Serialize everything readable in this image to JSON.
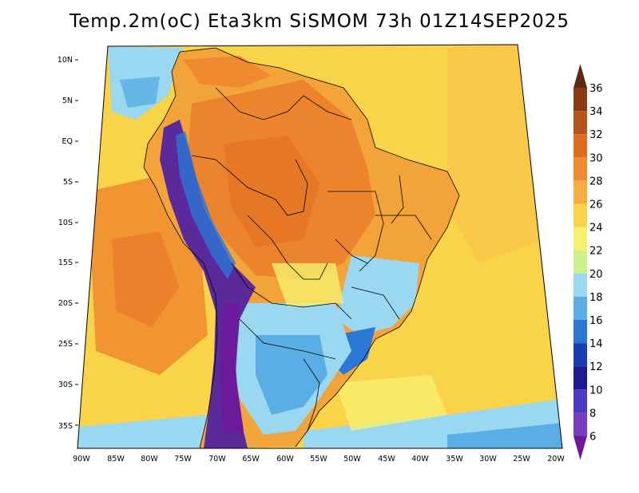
{
  "title": "Temp.2m(oC) Eta3km SiSMOM 73h 01Z14SEP2025",
  "lat_ticks": [
    "10N",
    "5N",
    "EQ",
    "5S",
    "10S",
    "15S",
    "20S",
    "25S",
    "30S",
    "35S"
  ],
  "lon_ticks": [
    "90W",
    "85W",
    "80W",
    "75W",
    "70W",
    "65W",
    "60W",
    "55W",
    "50W",
    "45W",
    "40W",
    "35W",
    "30W",
    "25W",
    "20W"
  ],
  "colorbar": {
    "labels": [
      "36",
      "34",
      "32",
      "30",
      "28",
      "26",
      "24",
      "22",
      "20",
      "18",
      "16",
      "14",
      "12",
      "10",
      "8",
      "6"
    ],
    "colors": [
      "#5c2a12",
      "#8a3b14",
      "#b8551a",
      "#e06a1e",
      "#f08a30",
      "#f7ad3e",
      "#f9d348",
      "#f7f06e",
      "#cdf28a",
      "#9ad7f0",
      "#5aaee6",
      "#2a77d4",
      "#1a3db0",
      "#1b1a8e",
      "#4a3ac4",
      "#7a3cc0",
      "#6a1a9a"
    ],
    "arrow_top_color": "#5c2a12",
    "arrow_bottom_color": "#6a1a9a"
  },
  "ocean_colors": {
    "warm": "#f9d348",
    "orange": "#f08a30",
    "cool": "#9ad7f0"
  },
  "land_colors": {
    "hot": "#e87a28",
    "warm": "#f2a43a",
    "mild": "#f7f06e",
    "cool": "#9ad7f0",
    "cold": "#2a77d4",
    "andes": "#5a2a9a"
  }
}
